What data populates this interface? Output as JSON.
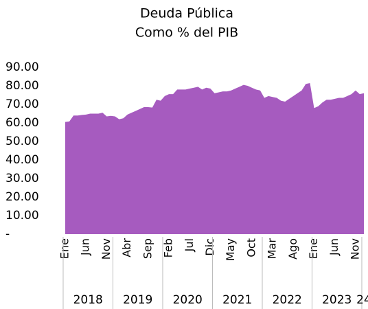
{
  "chart_data": {
    "type": "area",
    "title": "Deuda Pública",
    "subtitle": "Como % del PIB",
    "categories": [
      "Ene",
      null,
      null,
      null,
      null,
      "Jun",
      null,
      null,
      null,
      null,
      "Nov",
      null,
      null,
      null,
      null,
      "Abr",
      null,
      null,
      null,
      null,
      "Sep",
      null,
      null,
      null,
      null,
      "Feb",
      null,
      null,
      null,
      null,
      "Jul",
      null,
      null,
      null,
      null,
      "Dic",
      null,
      null,
      null,
      null,
      "May",
      null,
      null,
      null,
      null,
      "Oct",
      null,
      null,
      null,
      null,
      "Mar",
      null,
      null,
      null,
      null,
      "Ago",
      null,
      null,
      null,
      null,
      "Ene",
      null,
      null,
      null,
      null,
      "Jun",
      null,
      null,
      null,
      null,
      "Nov",
      null,
      null
    ],
    "x_groups": [
      {
        "label": "2018",
        "months": 12
      },
      {
        "label": "2019",
        "months": 12
      },
      {
        "label": "2020",
        "months": 12
      },
      {
        "label": "2021",
        "months": 12
      },
      {
        "label": "2022",
        "months": 12
      },
      {
        "label": "2023",
        "months": 12
      },
      {
        "label": "24",
        "months": 1
      }
    ],
    "values": [
      60.5,
      60.8,
      64,
      64,
      64.3,
      64.5,
      65,
      65,
      65,
      65.5,
      63.5,
      63.8,
      63.5,
      62,
      62.5,
      64.5,
      65.5,
      66.5,
      67.5,
      68.5,
      68.5,
      68.3,
      72.5,
      72,
      74.5,
      75.5,
      75.5,
      78,
      78,
      78,
      78.5,
      79,
      79.5,
      78,
      79,
      78.5,
      76,
      76.5,
      77,
      77,
      77.5,
      78.5,
      79.5,
      80.5,
      80,
      79,
      78,
      77.5,
      73.5,
      74.5,
      74,
      73.5,
      72,
      71.5,
      73,
      74.5,
      76,
      77.5,
      81,
      81.5,
      68,
      69,
      71,
      72.5,
      72.5,
      73,
      73.5,
      73.5,
      74.5,
      75.5,
      77.5,
      75.5,
      76
    ],
    "color": "#a65bbf",
    "ylim": [
      0,
      90
    ],
    "yticks": [
      {
        "value": 0,
        "label": "-"
      },
      {
        "value": 10,
        "label": "10.00"
      },
      {
        "value": 20,
        "label": "20.00"
      },
      {
        "value": 30,
        "label": "30.00"
      },
      {
        "value": 40,
        "label": "40.00"
      },
      {
        "value": 50,
        "label": "50.00"
      },
      {
        "value": 60,
        "label": "60.00"
      },
      {
        "value": 70,
        "label": "70.00"
      },
      {
        "value": 80,
        "label": "80.00"
      },
      {
        "value": 90,
        "label": "90.00"
      }
    ]
  }
}
